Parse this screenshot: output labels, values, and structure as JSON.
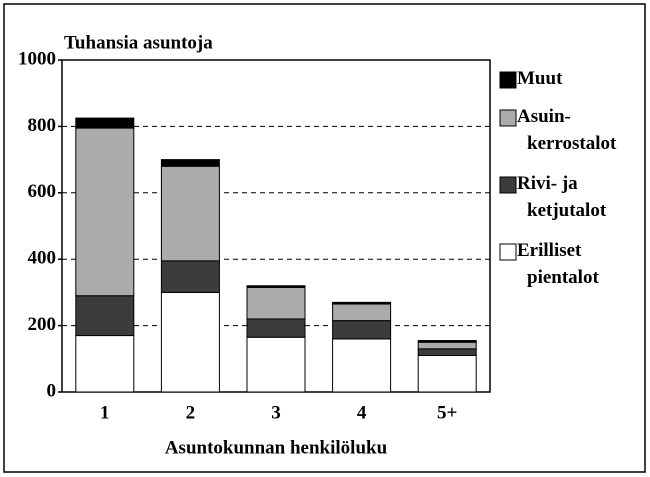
{
  "chart_data": {
    "type": "stacked_bar",
    "title": "Tuhansia asuntoja",
    "x_label": "Asuntokunnan henkilöluku",
    "categories": [
      "1",
      "2",
      "3",
      "4",
      "5+"
    ],
    "series": [
      {
        "name": "Erilliset\npientalot",
        "color": "#ffffff",
        "values": [
          170,
          300,
          165,
          160,
          110
        ]
      },
      {
        "name": "Rivi- ja\nketjutalot",
        "color": "#3c3c3c",
        "values": [
          120,
          95,
          55,
          55,
          20
        ]
      },
      {
        "name": "Asuin-\nkerrostalot",
        "color": "#ababab",
        "values": [
          505,
          285,
          95,
          50,
          20
        ]
      },
      {
        "name": "Muut",
        "color": "#000000",
        "values": [
          30,
          20,
          5,
          5,
          5
        ]
      }
    ],
    "ylim": [
      0,
      1000
    ],
    "yticks": [
      0,
      200,
      400,
      600,
      800,
      1000
    ],
    "grid": true
  }
}
